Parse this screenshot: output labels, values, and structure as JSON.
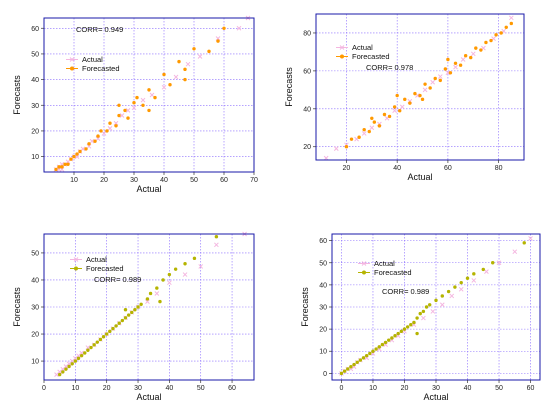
{
  "colors": {
    "grid": "#8a6cff",
    "frame": "#1a1aa8",
    "actual": "#f4b6e0",
    "forecasted_orange": "#ff9900",
    "forecasted_olive": "#b5b400"
  },
  "chart_data": [
    {
      "type": "scatter",
      "xlabel": "Actual",
      "ylabel": "Forecasts",
      "xlim": [
        0,
        70
      ],
      "ylim": [
        4,
        64
      ],
      "xticks": [
        10,
        20,
        30,
        40,
        50,
        60,
        70
      ],
      "yticks": [
        10,
        20,
        30,
        40,
        50,
        60
      ],
      "grid": true,
      "legend": {
        "position": "upper-left",
        "entries": [
          "Actual",
          "Forecasted"
        ]
      },
      "annotation": "CORR= 0.949",
      "series": [
        {
          "name": "Actual",
          "color": "#f4b6e0",
          "marker": "cross",
          "points": [
            [
              4,
              5
            ],
            [
              5,
              5
            ],
            [
              5,
              6
            ],
            [
              6,
              5
            ],
            [
              6,
              7
            ],
            [
              7,
              7
            ],
            [
              8,
              8
            ],
            [
              9,
              9
            ],
            [
              10,
              10
            ],
            [
              11,
              10
            ],
            [
              12,
              12
            ],
            [
              13,
              13
            ],
            [
              15,
              14
            ],
            [
              16,
              16
            ],
            [
              18,
              17
            ],
            [
              20,
              19
            ],
            [
              22,
              21
            ],
            [
              24,
              23
            ],
            [
              26,
              26
            ],
            [
              28,
              28
            ],
            [
              30,
              29
            ],
            [
              33,
              32
            ],
            [
              36,
              34
            ],
            [
              40,
              37
            ],
            [
              44,
              41
            ],
            [
              48,
              46
            ],
            [
              52,
              49
            ],
            [
              58,
              56
            ],
            [
              65,
              60
            ],
            [
              68,
              64
            ]
          ]
        },
        {
          "name": "Forecasted",
          "color": "#ff9900",
          "marker": "dot",
          "points": [
            [
              4,
              5
            ],
            [
              5,
              6
            ],
            [
              6,
              6
            ],
            [
              7,
              7
            ],
            [
              8,
              7
            ],
            [
              9,
              9
            ],
            [
              10,
              10
            ],
            [
              11,
              11
            ],
            [
              12,
              12
            ],
            [
              14,
              13
            ],
            [
              15,
              15
            ],
            [
              17,
              16
            ],
            [
              18,
              18
            ],
            [
              19,
              20
            ],
            [
              21,
              20
            ],
            [
              22,
              23
            ],
            [
              24,
              22
            ],
            [
              25,
              26
            ],
            [
              27,
              28
            ],
            [
              28,
              25
            ],
            [
              30,
              31
            ],
            [
              31,
              33
            ],
            [
              33,
              30
            ],
            [
              35,
              36
            ],
            [
              37,
              33
            ],
            [
              40,
              42
            ],
            [
              42,
              38
            ],
            [
              45,
              47
            ],
            [
              47,
              44
            ],
            [
              50,
              52
            ],
            [
              47,
              40
            ],
            [
              55,
              51
            ],
            [
              58,
              55
            ],
            [
              60,
              60
            ],
            [
              35,
              28
            ],
            [
              25,
              30
            ]
          ]
        }
      ]
    },
    {
      "type": "scatter",
      "xlabel": "Actual",
      "ylabel": "Forecasts",
      "xlim": [
        8,
        90
      ],
      "ylim": [
        13,
        90
      ],
      "xticks": [
        20,
        40,
        60,
        80
      ],
      "yticks": [
        20,
        40,
        60,
        80
      ],
      "grid": true,
      "legend": {
        "position": "upper-left",
        "entries": [
          "Actual",
          "Forecasted"
        ]
      },
      "annotation": "CORR= 0.978",
      "series": [
        {
          "name": "Actual",
          "color": "#f4b6e0",
          "marker": "cross",
          "points": [
            [
              12,
              14
            ],
            [
              16,
              19
            ],
            [
              20,
              21
            ],
            [
              24,
              24
            ],
            [
              27,
              27
            ],
            [
              30,
              30
            ],
            [
              33,
              32
            ],
            [
              36,
              35
            ],
            [
              39,
              39
            ],
            [
              42,
              41
            ],
            [
              45,
              44
            ],
            [
              48,
              47
            ],
            [
              51,
              50
            ],
            [
              54,
              54
            ],
            [
              57,
              57
            ],
            [
              60,
              59
            ],
            [
              63,
              62
            ],
            [
              66,
              66
            ],
            [
              70,
              69
            ],
            [
              74,
              72
            ],
            [
              78,
              77
            ],
            [
              82,
              81
            ],
            [
              85,
              88
            ]
          ]
        },
        {
          "name": "Forecasted",
          "color": "#ff9900",
          "marker": "dot",
          "points": [
            [
              20,
              20
            ],
            [
              22,
              24
            ],
            [
              25,
              25
            ],
            [
              27,
              29
            ],
            [
              29,
              28
            ],
            [
              31,
              33
            ],
            [
              33,
              31
            ],
            [
              35,
              37
            ],
            [
              37,
              36
            ],
            [
              39,
              41
            ],
            [
              41,
              39
            ],
            [
              43,
              45
            ],
            [
              45,
              43
            ],
            [
              47,
              48
            ],
            [
              49,
              47
            ],
            [
              51,
              53
            ],
            [
              53,
              51
            ],
            [
              55,
              56
            ],
            [
              57,
              55
            ],
            [
              59,
              61
            ],
            [
              61,
              59
            ],
            [
              63,
              64
            ],
            [
              65,
              63
            ],
            [
              67,
              68
            ],
            [
              69,
              67
            ],
            [
              71,
              72
            ],
            [
              73,
              71
            ],
            [
              75,
              75
            ],
            [
              77,
              76
            ],
            [
              79,
              79
            ],
            [
              81,
              80
            ],
            [
              83,
              83
            ],
            [
              85,
              85
            ],
            [
              40,
              47
            ],
            [
              50,
              45
            ],
            [
              60,
              66
            ],
            [
              30,
              35
            ]
          ]
        }
      ]
    },
    {
      "type": "scatter",
      "xlabel": "Actual",
      "ylabel": "Forecasts",
      "xlim": [
        0,
        67
      ],
      "ylim": [
        3,
        57
      ],
      "xticks": [
        0,
        10,
        20,
        30,
        40,
        50,
        60
      ],
      "yticks": [
        10,
        20,
        30,
        40,
        50
      ],
      "grid": true,
      "legend": {
        "position": "upper-left",
        "entries": [
          "Actual",
          "Forecasted"
        ]
      },
      "annotation": "CORR= 0.989",
      "series": [
        {
          "name": "Actual",
          "color": "#f4b6e0",
          "marker": "cross",
          "points": [
            [
              4,
              5
            ],
            [
              5,
              6
            ],
            [
              6,
              7
            ],
            [
              7,
              8
            ],
            [
              8,
              9
            ],
            [
              9,
              10
            ],
            [
              10,
              11
            ],
            [
              11,
              12
            ],
            [
              12,
              13
            ],
            [
              14,
              15
            ],
            [
              16,
              16
            ],
            [
              18,
              18
            ],
            [
              20,
              20
            ],
            [
              22,
              22
            ],
            [
              24,
              24
            ],
            [
              26,
              26
            ],
            [
              28,
              28
            ],
            [
              30,
              30
            ],
            [
              33,
              32
            ],
            [
              36,
              35
            ],
            [
              40,
              39
            ],
            [
              45,
              42
            ],
            [
              50,
              45
            ],
            [
              55,
              53
            ],
            [
              64,
              57
            ]
          ]
        },
        {
          "name": "Forecasted",
          "color": "#b5b400",
          "marker": "dot",
          "points": [
            [
              5,
              5
            ],
            [
              6,
              6
            ],
            [
              7,
              7
            ],
            [
              8,
              8
            ],
            [
              9,
              9
            ],
            [
              10,
              10
            ],
            [
              11,
              11
            ],
            [
              12,
              12
            ],
            [
              13,
              13
            ],
            [
              14,
              14
            ],
            [
              15,
              15
            ],
            [
              16,
              16
            ],
            [
              17,
              17
            ],
            [
              18,
              18
            ],
            [
              19,
              19
            ],
            [
              20,
              20
            ],
            [
              21,
              21
            ],
            [
              22,
              22
            ],
            [
              23,
              23
            ],
            [
              24,
              24
            ],
            [
              25,
              25
            ],
            [
              26,
              26
            ],
            [
              27,
              27
            ],
            [
              28,
              28
            ],
            [
              29,
              29
            ],
            [
              30,
              30
            ],
            [
              31,
              31
            ],
            [
              33,
              33
            ],
            [
              34,
              35
            ],
            [
              36,
              37
            ],
            [
              38,
              40
            ],
            [
              40,
              42
            ],
            [
              42,
              44
            ],
            [
              45,
              46
            ],
            [
              48,
              48
            ],
            [
              55,
              56
            ],
            [
              37,
              32
            ],
            [
              26,
              29
            ]
          ]
        }
      ]
    },
    {
      "type": "scatter",
      "xlabel": "Actual",
      "ylabel": "Forecasts",
      "xlim": [
        -3,
        63
      ],
      "ylim": [
        -3,
        63
      ],
      "xticks": [
        0,
        10,
        20,
        30,
        40,
        50,
        60
      ],
      "yticks": [
        0,
        10,
        20,
        30,
        40,
        50,
        60
      ],
      "grid": true,
      "legend": {
        "position": "upper-left",
        "entries": [
          "Actual",
          "Forecasted"
        ]
      },
      "annotation": "CORR= 0.989",
      "series": [
        {
          "name": "Actual",
          "color": "#f4b6e0",
          "marker": "cross",
          "points": [
            [
              0,
              0
            ],
            [
              1,
              1
            ],
            [
              2,
              2
            ],
            [
              3,
              2
            ],
            [
              4,
              3
            ],
            [
              5,
              5
            ],
            [
              6,
              6
            ],
            [
              8,
              7
            ],
            [
              10,
              9
            ],
            [
              12,
              11
            ],
            [
              14,
              13
            ],
            [
              16,
              15
            ],
            [
              18,
              17
            ],
            [
              20,
              19
            ],
            [
              23,
              22
            ],
            [
              26,
              25
            ],
            [
              29,
              28
            ],
            [
              32,
              31
            ],
            [
              35,
              35
            ],
            [
              38,
              38
            ],
            [
              42,
              42
            ],
            [
              46,
              46
            ],
            [
              50,
              50
            ],
            [
              55,
              55
            ],
            [
              60,
              61
            ]
          ]
        },
        {
          "name": "Forecasted",
          "color": "#b5b400",
          "marker": "dot",
          "points": [
            [
              0,
              0
            ],
            [
              1,
              1
            ],
            [
              2,
              2
            ],
            [
              3,
              3
            ],
            [
              4,
              4
            ],
            [
              5,
              5
            ],
            [
              6,
              6
            ],
            [
              7,
              7
            ],
            [
              8,
              8
            ],
            [
              9,
              9
            ],
            [
              10,
              10
            ],
            [
              11,
              11
            ],
            [
              12,
              12
            ],
            [
              13,
              13
            ],
            [
              14,
              14
            ],
            [
              15,
              15
            ],
            [
              16,
              16
            ],
            [
              17,
              17
            ],
            [
              18,
              18
            ],
            [
              19,
              19
            ],
            [
              20,
              20
            ],
            [
              21,
              21
            ],
            [
              22,
              22
            ],
            [
              23,
              23
            ],
            [
              24,
              25
            ],
            [
              25,
              27
            ],
            [
              26,
              28
            ],
            [
              27,
              30
            ],
            [
              28,
              31
            ],
            [
              30,
              33
            ],
            [
              32,
              35
            ],
            [
              34,
              37
            ],
            [
              36,
              39
            ],
            [
              38,
              41
            ],
            [
              40,
              43
            ],
            [
              42,
              45
            ],
            [
              45,
              47
            ],
            [
              48,
              50
            ],
            [
              58,
              59
            ],
            [
              24,
              18
            ]
          ]
        }
      ]
    }
  ]
}
